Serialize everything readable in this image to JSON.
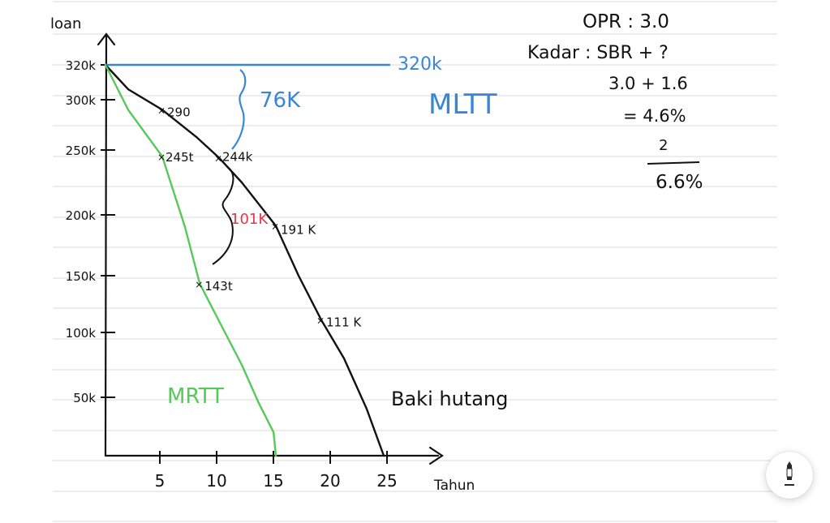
{
  "chart_data": {
    "type": "line",
    "ylabel": "loan",
    "xlabel": "Tahun",
    "xlim": [
      0,
      25
    ],
    "ylim": [
      0,
      320000
    ],
    "x_ticks": [
      "5",
      "10",
      "15",
      "20",
      "25"
    ],
    "y_ticks": [
      "320k",
      "300k",
      "250k",
      "200k",
      "150k",
      "100k",
      "50k"
    ],
    "series": [
      {
        "name": "MLTT",
        "color": "#3a86d6",
        "end_label": "320k",
        "points": [
          [
            0,
            320000
          ],
          [
            25,
            320000
          ]
        ]
      },
      {
        "name": "Baki hutang",
        "color": "#111111",
        "points": [
          [
            0,
            320000
          ],
          [
            2,
            306000
          ],
          [
            5,
            290000
          ],
          [
            8,
            263000
          ],
          [
            10,
            244000
          ],
          [
            12,
            225000
          ],
          [
            15,
            191000
          ],
          [
            17,
            150000
          ],
          [
            19,
            111000
          ],
          [
            21,
            80000
          ],
          [
            23,
            40000
          ],
          [
            24.5,
            0
          ]
        ]
      },
      {
        "name": "MRTT",
        "color": "#56c95a",
        "points": [
          [
            0,
            320000
          ],
          [
            2,
            290000
          ],
          [
            5,
            245000
          ],
          [
            7,
            190000
          ],
          [
            8.3,
            143000
          ],
          [
            10,
            110000
          ],
          [
            12,
            75000
          ],
          [
            13.5,
            45000
          ],
          [
            14.8,
            20000
          ],
          [
            15,
            0
          ]
        ]
      }
    ],
    "point_labels": [
      {
        "text": "290",
        "x": 5,
        "y": 290000,
        "color": "#111111"
      },
      {
        "text": "244k",
        "x": 10,
        "y": 244000,
        "color": "#111111"
      },
      {
        "text": "191 K",
        "x": 15,
        "y": 191000,
        "color": "#111111"
      },
      {
        "text": "111 K",
        "x": 19,
        "y": 111000,
        "color": "#111111"
      },
      {
        "text": "245t",
        "x": 5,
        "y": 245000,
        "color": "#111111"
      },
      {
        "text": "143t",
        "x": 8.3,
        "y": 143000,
        "color": "#111111"
      }
    ],
    "annotations": [
      {
        "text": "76K",
        "color": "#3a86d6"
      },
      {
        "text": "101K",
        "color": "#e03a4a"
      }
    ],
    "notes": [
      "OPR : 3.0",
      "Kadar : SBR + ?",
      "3.0 + 1.6",
      "= 4.6%",
      "2",
      "6.6%"
    ]
  }
}
